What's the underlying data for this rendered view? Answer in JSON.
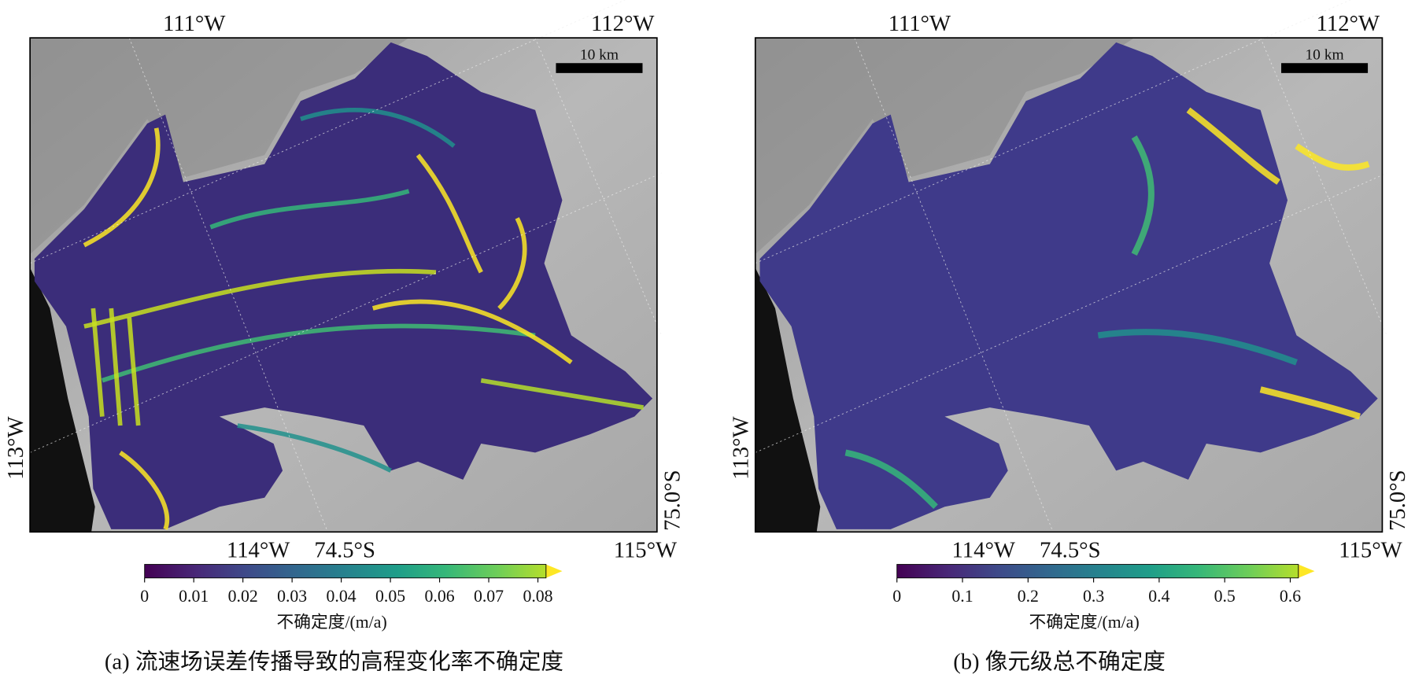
{
  "panels": [
    {
      "top_labels": [
        "111°W",
        "112°W"
      ],
      "left_label": "113°W",
      "right_label": "75.0°S",
      "bottom_labels": [
        "114°W",
        "74.5°S",
        "115°W"
      ],
      "scale_bar": "10 km",
      "colorbar": {
        "colormap": "viridis",
        "lim": [
          0,
          0.08
        ],
        "ticks": [
          0,
          0.01,
          0.02,
          0.03,
          0.04,
          0.05,
          0.06,
          0.07,
          0.08
        ],
        "label": "不确定度/(m/a)",
        "extend": "max"
      },
      "caption": "(a) 流速场误差传播导致的高程变化率不确定度"
    },
    {
      "top_labels": [
        "111°W",
        "112°W"
      ],
      "left_label": "113°W",
      "right_label": "75.0°S",
      "bottom_labels": [
        "114°W",
        "74.5°S",
        "115°W"
      ],
      "scale_bar": "10 km",
      "colorbar": {
        "colormap": "viridis",
        "lim": [
          0,
          0.6
        ],
        "ticks": [
          0,
          0.1,
          0.2,
          0.3,
          0.4,
          0.5,
          0.6
        ],
        "label": "不确定度/(m/a)",
        "extend": "max"
      },
      "caption": "(b) 像元级总不确定度"
    }
  ]
}
